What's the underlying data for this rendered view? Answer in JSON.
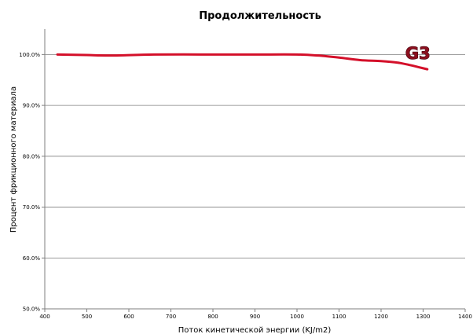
{
  "chart_data": {
    "type": "line",
    "title": "Продолжительность",
    "xlabel": "Поток кинетической энергии (KJ/m2)",
    "ylabel": "Процент фрикционного материала",
    "xlim": [
      400,
      1400
    ],
    "ylim": [
      50,
      105
    ],
    "x_ticks": [
      400,
      500,
      600,
      700,
      800,
      900,
      1000,
      1100,
      1200,
      1300,
      1400
    ],
    "x_tick_labels": [
      "400",
      "500",
      "600",
      "700",
      "800",
      "900",
      "1000",
      "1100",
      "1200",
      "1300",
      "1400"
    ],
    "y_ticks": [
      50,
      60,
      70,
      80,
      90,
      100
    ],
    "y_tick_labels": [
      "50.0%",
      "60.0%",
      "70.0%",
      "80.0%",
      "90.0%",
      "100.0%"
    ],
    "grid": true,
    "series": [
      {
        "name": "G3",
        "color": "#d4102a",
        "x": [
          430,
          500,
          560,
          660,
          800,
          900,
          1000,
          1050,
          1100,
          1150,
          1200,
          1240,
          1270,
          1290,
          1310
        ],
        "y": [
          100,
          99.9,
          99.8,
          100,
          100,
          100,
          100,
          99.8,
          99.4,
          98.9,
          98.7,
          98.4,
          97.9,
          97.5,
          97.1
        ]
      }
    ]
  }
}
